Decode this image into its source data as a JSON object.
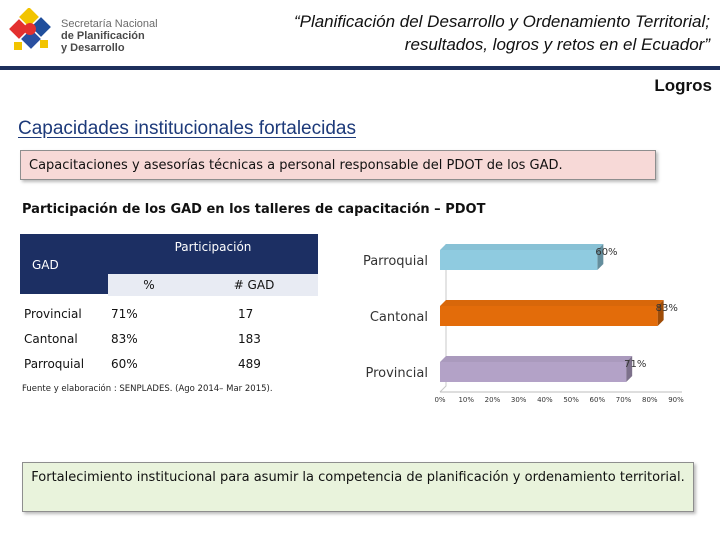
{
  "header": {
    "logo": {
      "line1": "Secretaría Nacional",
      "line2": "de Planificación",
      "line3": "y Desarrollo"
    },
    "title_line1": "“Planificación del Desarrollo y Ordenamiento Territorial;",
    "title_line2": "resultados, logros y retos en el Ecuador”",
    "section": "Logros"
  },
  "main_title": "Capacidades institucionales fortalecidas",
  "highlight_box": "Capacitaciones y asesorías técnicas a personal responsable del PDOT de los GAD.",
  "table": {
    "title": "Participación de los GAD en los talleres de capacitación – PDOT",
    "header_gad": "GAD",
    "header_participation": "Participación",
    "subheader_pct": "%",
    "subheader_num": "# GAD",
    "rows": [
      {
        "name": "Provincial",
        "pct": "71%",
        "num": "17"
      },
      {
        "name": "Cantonal",
        "pct": "83%",
        "num": "183"
      },
      {
        "name": "Parroquial",
        "pct": "60%",
        "num": "489"
      }
    ],
    "source": "Fuente y elaboración : SENPLADES. (Ago 2014– Mar 2015)."
  },
  "chart_data": {
    "type": "bar",
    "orientation": "horizontal",
    "categories": [
      "Parroquial",
      "Cantonal",
      "Provincial"
    ],
    "values": [
      60,
      83,
      71
    ],
    "data_labels": [
      "60%",
      "83%",
      "71%"
    ],
    "bar_colors": [
      "#8fcbe0",
      "#e36c0a",
      "#b3a2c7"
    ],
    "x_ticks": [
      "0%",
      "10%",
      "20%",
      "30%",
      "40%",
      "50%",
      "60%",
      "70%",
      "80%",
      "90%"
    ],
    "xlim": [
      0,
      90
    ],
    "grid": false,
    "style": "3d"
  },
  "bottom_box": "Fortalecimiento institucional para asumir la competencia de planificación y ordenamiento territorial."
}
